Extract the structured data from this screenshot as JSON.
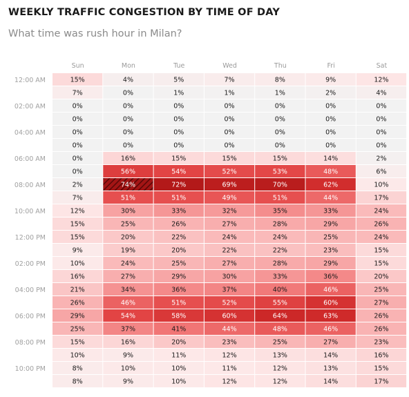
{
  "header": {
    "title": "WEEKLY TRAFFIC CONGESTION BY TIME OF DAY",
    "subtitle": "What time was rush hour in Milan?"
  },
  "colors": {
    "low": "#f2f2f2",
    "high": "#b71c1c",
    "text_dark": "#1a1a1a",
    "text_light": "#ffffff"
  },
  "chart_data": {
    "type": "heatmap",
    "title": "WEEKLY TRAFFIC CONGESTION BY TIME OF DAY",
    "subtitle": "What time was rush hour in Milan?",
    "columns": [
      "Sun",
      "Mon",
      "Tue",
      "Wed",
      "Thu",
      "Fri",
      "Sat"
    ],
    "row_labels": [
      "12:00 AM",
      "",
      "02:00 AM",
      "",
      "04:00 AM",
      "",
      "06:00 AM",
      "",
      "08:00 AM",
      "",
      "10:00 AM",
      "",
      "12:00 PM",
      "",
      "02:00 PM",
      "",
      "04:00 PM",
      "",
      "06:00 PM",
      "",
      "08:00 PM",
      "",
      "10:00 PM",
      ""
    ],
    "unit": "%",
    "highlight": {
      "row": 8,
      "col": 1
    },
    "values": [
      [
        15,
        4,
        5,
        7,
        8,
        9,
        12
      ],
      [
        7,
        0,
        1,
        1,
        1,
        2,
        4
      ],
      [
        0,
        0,
        0,
        0,
        0,
        0,
        0
      ],
      [
        0,
        0,
        0,
        0,
        0,
        0,
        0
      ],
      [
        0,
        0,
        0,
        0,
        0,
        0,
        0
      ],
      [
        0,
        0,
        0,
        0,
        0,
        0,
        0
      ],
      [
        0,
        16,
        15,
        15,
        15,
        14,
        2
      ],
      [
        0,
        56,
        54,
        52,
        53,
        48,
        6
      ],
      [
        2,
        74,
        72,
        69,
        70,
        62,
        10
      ],
      [
        7,
        51,
        51,
        49,
        51,
        44,
        17
      ],
      [
        12,
        30,
        33,
        32,
        35,
        33,
        24
      ],
      [
        15,
        25,
        26,
        27,
        28,
        29,
        26
      ],
      [
        15,
        20,
        22,
        24,
        24,
        25,
        24
      ],
      [
        9,
        19,
        20,
        22,
        22,
        23,
        15
      ],
      [
        10,
        24,
        25,
        27,
        28,
        29,
        15
      ],
      [
        16,
        27,
        29,
        30,
        33,
        36,
        20
      ],
      [
        21,
        34,
        36,
        37,
        40,
        46,
        25
      ],
      [
        26,
        46,
        51,
        52,
        55,
        60,
        27
      ],
      [
        29,
        54,
        58,
        60,
        64,
        63,
        26
      ],
      [
        25,
        37,
        41,
        44,
        48,
        46,
        26
      ],
      [
        15,
        16,
        20,
        23,
        25,
        27,
        23
      ],
      [
        10,
        9,
        11,
        12,
        13,
        14,
        16
      ],
      [
        8,
        10,
        10,
        11,
        12,
        13,
        15
      ],
      [
        8,
        9,
        10,
        12,
        12,
        14,
        17
      ]
    ]
  }
}
